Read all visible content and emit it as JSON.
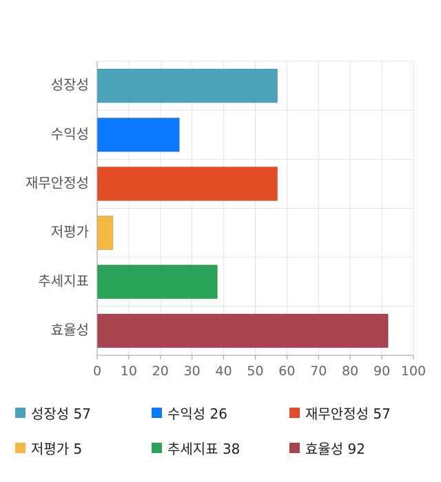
{
  "chart_data": {
    "type": "bar",
    "orientation": "horizontal",
    "categories": [
      "성장성",
      "수익성",
      "재무안정성",
      "저평가",
      "추세지표",
      "효율성"
    ],
    "values": [
      57,
      26,
      57,
      5,
      38,
      92
    ],
    "colors": [
      "#4aa3ba",
      "#0a7bff",
      "#e34c26",
      "#f4b942",
      "#2aa257",
      "#a8434f"
    ],
    "xlim": [
      0,
      100
    ],
    "xticks": [
      0,
      10,
      20,
      30,
      40,
      50,
      60,
      70,
      80,
      90,
      100
    ],
    "grid": true,
    "legend_position": "bottom"
  },
  "legend": [
    {
      "label": "성장성 57",
      "color": "#4aa3ba"
    },
    {
      "label": "수익성 26",
      "color": "#0a7bff"
    },
    {
      "label": "재무안정성 57",
      "color": "#e34c26"
    },
    {
      "label": "저평가 5",
      "color": "#f4b942"
    },
    {
      "label": "추세지표 38",
      "color": "#2aa257"
    },
    {
      "label": "효율성 92",
      "color": "#a8434f"
    }
  ]
}
